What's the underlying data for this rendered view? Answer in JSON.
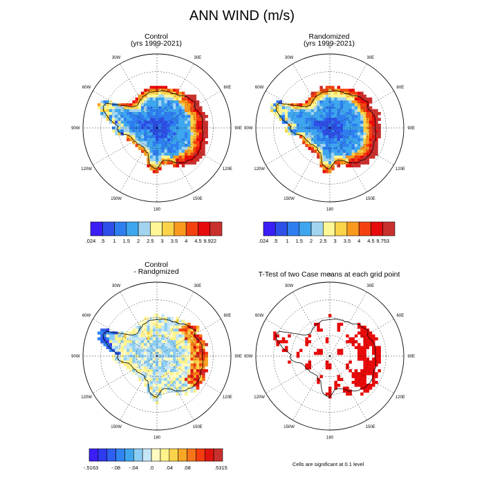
{
  "figure": {
    "title": "ANN WIND (m/s)"
  },
  "longitude_labels": [
    "0",
    "30E",
    "60E",
    "90E",
    "120E",
    "150E",
    "180",
    "150W",
    "120W",
    "90W",
    "60W",
    "30W"
  ],
  "panels": [
    {
      "id": "control",
      "title_line1": "Control",
      "title_line2": "(yrs 1999-2021)",
      "kind": "wind"
    },
    {
      "id": "randomized",
      "title_line1": "Randomized",
      "title_line2": "(yrs 1999-2021)",
      "kind": "wind"
    },
    {
      "id": "difference",
      "title_line1": "Control",
      "title_line2": "- Randomized",
      "kind": "diff"
    },
    {
      "id": "ttest",
      "title_line1": "T-Test of two Case means at each grid point",
      "title_line2": "",
      "kind": "ttest"
    }
  ],
  "colorbars": {
    "control": {
      "labels": [
        ".024",
        ".5",
        "1",
        "1.5",
        "2",
        "2.5",
        "3",
        "3.5",
        "4",
        "4.5",
        "9.922"
      ],
      "colors": [
        "#3b1ef5",
        "#2e50e8",
        "#2f7ef0",
        "#3ea6ee",
        "#a2d4f0",
        "#fff796",
        "#fbd34a",
        "#f99a1e",
        "#f3420f",
        "#e80b0b",
        "#c8302e"
      ]
    },
    "randomized": {
      "labels": [
        ".024",
        ".5",
        "1",
        "1.5",
        "2",
        "2.5",
        "3",
        "3.5",
        "4",
        "4.5",
        "9.753"
      ],
      "colors": [
        "#3b1ef5",
        "#2e50e8",
        "#2f7ef0",
        "#3ea6ee",
        "#a2d4f0",
        "#fff796",
        "#fbd34a",
        "#f99a1e",
        "#f3420f",
        "#e80b0b",
        "#c8302e"
      ]
    },
    "difference": {
      "labels": [
        "-.5163",
        "-.08",
        "-.04",
        ".0",
        ".04",
        ".08",
        ".5315"
      ],
      "colors": [
        "#3b1ef5",
        "#2e3af0",
        "#2e5ff0",
        "#2f84f0",
        "#3fa6ee",
        "#8ccdf3",
        "#c5e6f7",
        "#fffbc0",
        "#fef28a",
        "#fbd34a",
        "#f9a627",
        "#f6741a",
        "#f33d0f",
        "#e0140f",
        "#c8302e"
      ]
    },
    "ttest_note": "Cells are significant at 0.1 level"
  },
  "chart_data": [
    {
      "type": "heatmap",
      "title": "Control (yrs 1999-2021)",
      "variable": "ANN WIND",
      "units": "m/s",
      "range": [
        0.024,
        9.922
      ],
      "contour_levels": [
        0.5,
        1,
        1.5,
        2,
        2.5,
        3,
        3.5,
        4,
        4.5
      ],
      "projection": "south polar stereographic"
    },
    {
      "type": "heatmap",
      "title": "Randomized (yrs 1999-2021)",
      "variable": "ANN WIND",
      "units": "m/s",
      "range": [
        0.024,
        9.753
      ],
      "contour_levels": [
        0.5,
        1,
        1.5,
        2,
        2.5,
        3,
        3.5,
        4,
        4.5
      ],
      "projection": "south polar stereographic"
    },
    {
      "type": "heatmap",
      "title": "Control - Randomized",
      "variable": "ANN WIND difference",
      "units": "m/s",
      "range": [
        -0.5163,
        0.5315
      ],
      "projection": "south polar stereographic"
    },
    {
      "type": "heatmap",
      "title": "T-Test of two Case means at each grid point",
      "significance_level": 0.1,
      "projection": "south polar stereographic"
    }
  ]
}
